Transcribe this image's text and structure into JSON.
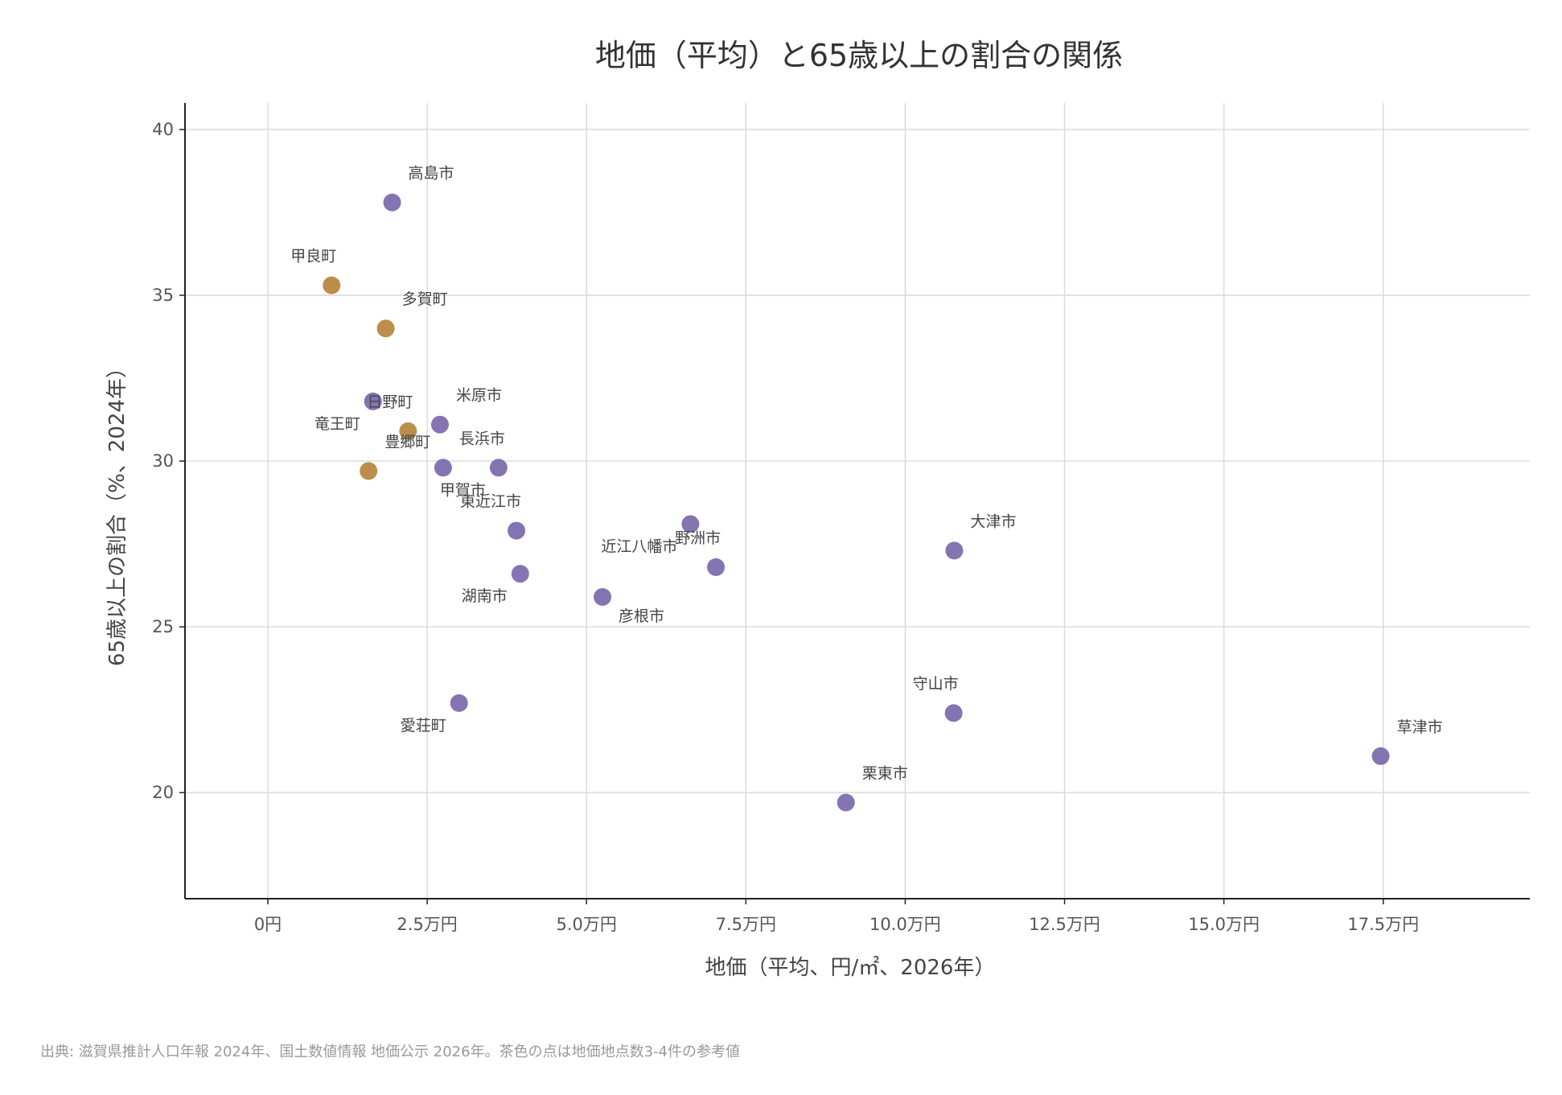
{
  "chart_data": {
    "type": "scatter",
    "title": "地価（平均）と65歳以上の割合の関係",
    "xlabel": "地価（平均、円/㎡、2026年）",
    "ylabel": "65歳以上の割合（%、2024年）",
    "source": "出典: 滋賀県推計人口年報 2024年、国土数値情報 地価公示 2026年。茶色の点は地価地点数3-4件の参考値",
    "xlim": [
      -13000,
      198000
    ],
    "ylim": [
      16.8,
      40.8
    ],
    "xticks": [
      0,
      25000,
      50000,
      75000,
      100000,
      125000,
      150000,
      175000
    ],
    "xtick_labels": [
      "0円",
      "2.5万円",
      "5.0万円",
      "7.5万円",
      "10.0万円",
      "12.5万円",
      "15.0万円",
      "17.5万円"
    ],
    "yticks": [
      20,
      25,
      30,
      35,
      40
    ],
    "ytick_labels": [
      "20",
      "25",
      "30",
      "35",
      "40"
    ],
    "grid": true,
    "legend": "none",
    "colors": {
      "standard": "#7b68ab",
      "reference": "#b5853c"
    },
    "points": [
      {
        "name": "高島市",
        "x": 19500,
        "y": 37.8,
        "group": "standard",
        "label_pos": "above-right"
      },
      {
        "name": "甲良町",
        "x": 10000,
        "y": 35.3,
        "group": "reference",
        "label_pos": "above-left"
      },
      {
        "name": "多賀町",
        "x": 18500,
        "y": 34.0,
        "group": "reference",
        "label_pos": "above-right"
      },
      {
        "name": "竜王町",
        "x": 16500,
        "y": 31.8,
        "group": "standard",
        "label_pos": "below-left"
      },
      {
        "name": "日野町",
        "x": 22000,
        "y": 30.9,
        "group": "reference",
        "label_pos": "above-left"
      },
      {
        "name": "米原市",
        "x": 27000,
        "y": 31.1,
        "group": "standard",
        "label_pos": "above-right"
      },
      {
        "name": "豊郷町",
        "x": 15800,
        "y": 29.7,
        "group": "reference",
        "label_pos": "above-right"
      },
      {
        "name": "長浜市",
        "x": 27500,
        "y": 29.8,
        "group": "standard",
        "label_pos": "above-right"
      },
      {
        "name": "甲賀市",
        "x": 36200,
        "y": 29.8,
        "group": "standard",
        "label_pos": "below-left"
      },
      {
        "name": "東近江市",
        "x": 39000,
        "y": 27.9,
        "group": "standard",
        "label_pos": "above-left"
      },
      {
        "name": "湖南市",
        "x": 39600,
        "y": 26.6,
        "group": "standard",
        "label_pos": "below-left"
      },
      {
        "name": "彦根市",
        "x": 52500,
        "y": 25.9,
        "group": "standard",
        "label_pos": "below-right"
      },
      {
        "name": "近江八幡市",
        "x": 66300,
        "y": 28.1,
        "group": "standard",
        "label_pos": "below-left"
      },
      {
        "name": "野洲市",
        "x": 70300,
        "y": 26.8,
        "group": "standard",
        "label_pos": "above-left"
      },
      {
        "name": "大津市",
        "x": 107700,
        "y": 27.3,
        "group": "standard",
        "label_pos": "above-right"
      },
      {
        "name": "愛荘町",
        "x": 30000,
        "y": 22.7,
        "group": "standard",
        "label_pos": "below-left"
      },
      {
        "name": "守山市",
        "x": 107600,
        "y": 22.4,
        "group": "standard",
        "label_pos": "above-left"
      },
      {
        "name": "栗東市",
        "x": 90700,
        "y": 19.7,
        "group": "standard",
        "label_pos": "above-right"
      },
      {
        "name": "草津市",
        "x": 174600,
        "y": 21.1,
        "group": "standard",
        "label_pos": "above-right"
      }
    ]
  }
}
